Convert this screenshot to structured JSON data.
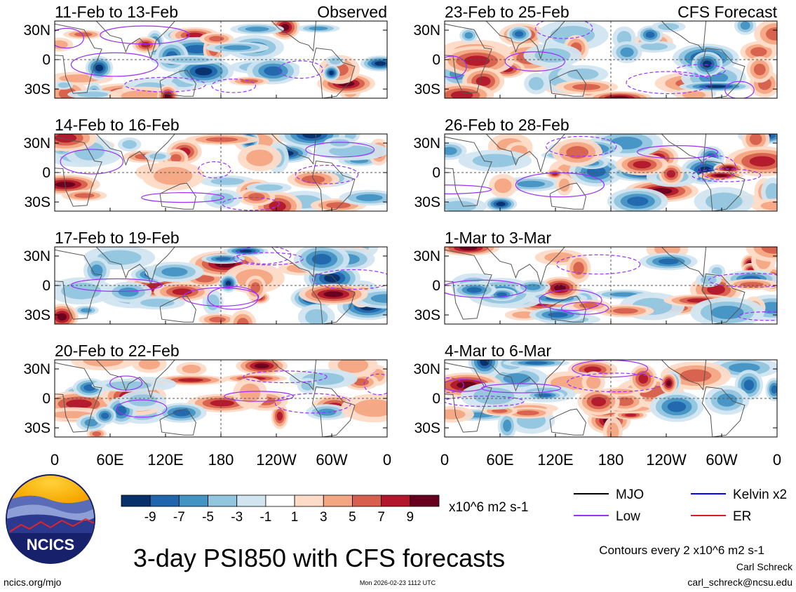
{
  "chart_data": {
    "type": "heatmap",
    "title": "3-day PSI850 with CFS forecasts",
    "variable": "PSI850",
    "units": "x10^6 m2 s-1",
    "contour_note": "Contours every 2 x10^6 m2 s-1",
    "observed_label": "Observed",
    "forecast_label": "CFS Forecast",
    "panels_left": [
      {
        "period": "11-Feb to 13-Feb"
      },
      {
        "period": "14-Feb to 16-Feb"
      },
      {
        "period": "17-Feb to 19-Feb"
      },
      {
        "period": "20-Feb to 22-Feb"
      }
    ],
    "panels_right": [
      {
        "period": "23-Feb to 25-Feb"
      },
      {
        "period": "26-Feb to 28-Feb"
      },
      {
        "period": "1-Mar to 3-Mar"
      },
      {
        "period": "4-Mar to 6-Mar"
      }
    ],
    "x_ticks": [
      "0",
      "60E",
      "120E",
      "180",
      "120W",
      "60W",
      "0"
    ],
    "y_ticks": [
      "30N",
      "0",
      "30S"
    ],
    "colorbar": {
      "ticks": [
        "-9",
        "-7",
        "-5",
        "-3",
        "-1",
        "1",
        "3",
        "5",
        "7",
        "9"
      ],
      "colors": [
        "#08306b",
        "#2166ac",
        "#4393c3",
        "#92c5de",
        "#d1e5f0",
        "#ffffff",
        "#fddbc7",
        "#f4a582",
        "#d6604d",
        "#b2182b",
        "#67001f"
      ]
    },
    "legend": [
      {
        "name": "MJO",
        "color": "#000000"
      },
      {
        "name": "Kelvin x2",
        "color": "#0000ff"
      },
      {
        "name": "Low",
        "color": "#9b30ff"
      },
      {
        "name": "ER",
        "color": "#d62020"
      }
    ]
  },
  "footer": {
    "logo_text": "NCICS",
    "url": "ncics.org/mjo",
    "timestamp": "Mon 2026-02-23 1112 UTC",
    "author": "Carl Schreck",
    "email": "carl_schreck@ncsu.edu"
  }
}
